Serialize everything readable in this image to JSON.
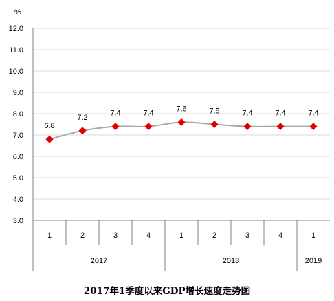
{
  "chart_data": {
    "type": "line",
    "title": "2017年1季度以来GDP增长速度走势图",
    "ylabel": "%",
    "ylim": [
      3.0,
      12.0
    ],
    "yticks": [
      "3.0",
      "4.0",
      "5.0",
      "6.0",
      "7.0",
      "8.0",
      "9.0",
      "10.0",
      "11.0",
      "12.0"
    ],
    "categories": [
      "1",
      "2",
      "3",
      "4",
      "1",
      "2",
      "3",
      "4",
      "1"
    ],
    "years": [
      {
        "label": "2017",
        "span": 4
      },
      {
        "label": "2018",
        "span": 4
      },
      {
        "label": "2019",
        "span": 1
      }
    ],
    "series": [
      {
        "values": [
          6.8,
          7.2,
          7.4,
          7.4,
          7.6,
          7.5,
          7.4,
          7.4,
          7.4
        ],
        "data_labels": [
          "6.8",
          "7.2",
          "7.4",
          "7.4",
          "7.6",
          "7.5",
          "7.4",
          "7.4",
          "7.4"
        ]
      }
    ],
    "grid": true,
    "legend": "none",
    "colors": {
      "line": "#a6a6a6",
      "marker": "#e00000",
      "grid": "#d9d9d9",
      "axis": "#808080"
    }
  }
}
